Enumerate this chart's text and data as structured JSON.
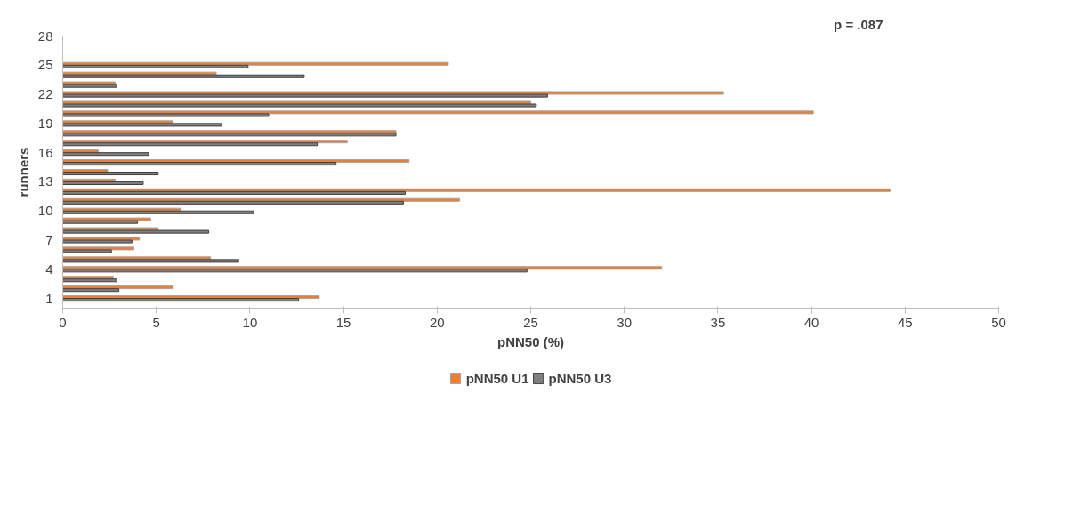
{
  "chart_data": {
    "type": "bar",
    "orientation": "horizontal",
    "xlabel": "pNN50 (%)",
    "ylabel": "runners",
    "annotations": [
      "p = .087"
    ],
    "x": [
      1,
      2,
      3,
      4,
      5,
      6,
      7,
      8,
      9,
      10,
      11,
      12,
      13,
      14,
      15,
      16,
      17,
      18,
      19,
      20,
      21,
      22,
      23,
      24,
      25
    ],
    "series": [
      {
        "name": "pNN50 U1",
        "color": "#ed7d31",
        "values": [
          13.7,
          5.9,
          2.7,
          32.0,
          7.9,
          3.8,
          4.1,
          5.1,
          4.7,
          6.3,
          21.2,
          44.2,
          2.8,
          2.4,
          18.5,
          1.9,
          15.2,
          17.8,
          5.9,
          40.1,
          25.0,
          35.3,
          2.8,
          8.2,
          20.6
        ]
      },
      {
        "name": "pNN50 U3",
        "color": "#7f7f7f",
        "values": [
          12.6,
          3.0,
          2.9,
          24.8,
          9.4,
          2.6,
          3.7,
          7.8,
          4.0,
          10.2,
          18.2,
          18.3,
          4.3,
          5.1,
          14.6,
          4.6,
          13.6,
          17.8,
          8.5,
          11.0,
          25.3,
          25.9,
          2.9,
          12.9,
          9.9
        ]
      }
    ],
    "xlim": [
      0,
      50
    ],
    "xticks": [
      0,
      5,
      10,
      15,
      20,
      25,
      30,
      35,
      40,
      45,
      50
    ],
    "ylim": [
      0,
      28
    ],
    "yticks": [
      1,
      4,
      7,
      10,
      13,
      16,
      19,
      22,
      25,
      28
    ],
    "grid": false,
    "legend": "bottom"
  }
}
